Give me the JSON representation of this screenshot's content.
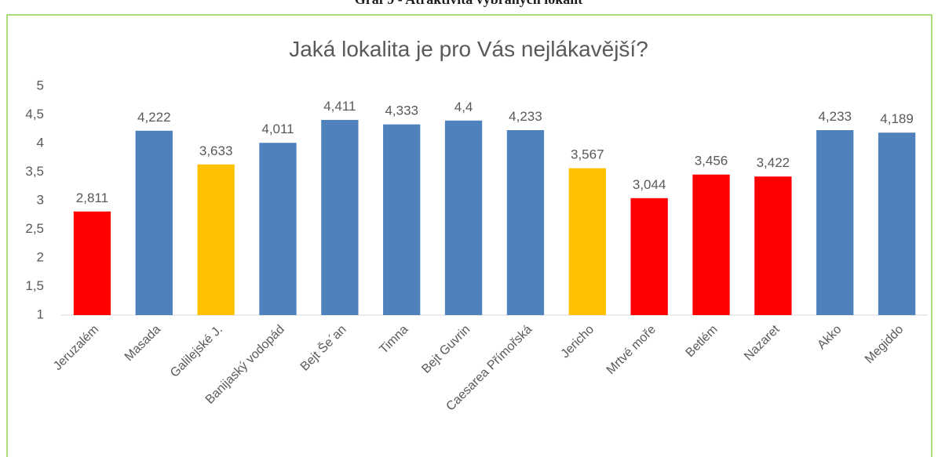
{
  "caption": "Graf 9 - Atraktivita vybraných lokalit",
  "chart_data": {
    "type": "bar",
    "title": "Jaká lokalita je pro Vás nejlákavější?",
    "categories": [
      "Jeruzalém",
      "Masada",
      "Galilejské J.",
      "Banijaský vodopád",
      "Bejt Še´an",
      "Timna",
      "Bejt Guvrin",
      "Caesarea Přímořská",
      "Jericho",
      "Mrtvé moře",
      "Betlém",
      "Nazaret",
      "Akko",
      "Megiddo"
    ],
    "values": [
      2.811,
      4.222,
      3.633,
      4.011,
      4.411,
      4.333,
      4.4,
      4.233,
      3.567,
      3.044,
      3.456,
      3.422,
      4.233,
      4.189
    ],
    "value_labels": [
      "2,811",
      "4,222",
      "3,633",
      "4,011",
      "4,411",
      "4,333",
      "4,4",
      "4,233",
      "3,567",
      "3,044",
      "3,456",
      "3,422",
      "4,233",
      "4,189"
    ],
    "colors": [
      "#ff0000",
      "#4f81bd",
      "#ffc000",
      "#4f81bd",
      "#4f81bd",
      "#4f81bd",
      "#4f81bd",
      "#4f81bd",
      "#ffc000",
      "#ff0000",
      "#ff0000",
      "#ff0000",
      "#4f81bd",
      "#4f81bd"
    ],
    "ylim": [
      1,
      5
    ],
    "yticks": [
      1,
      {
        "value": 1.5,
        "label": "1,5"
      },
      2,
      {
        "value": 2.5,
        "label": "2,5"
      },
      3,
      {
        "value": 3.5,
        "label": "3,5"
      },
      4,
      {
        "value": 4.5,
        "label": "4,5"
      },
      5
    ],
    "grid": false
  }
}
